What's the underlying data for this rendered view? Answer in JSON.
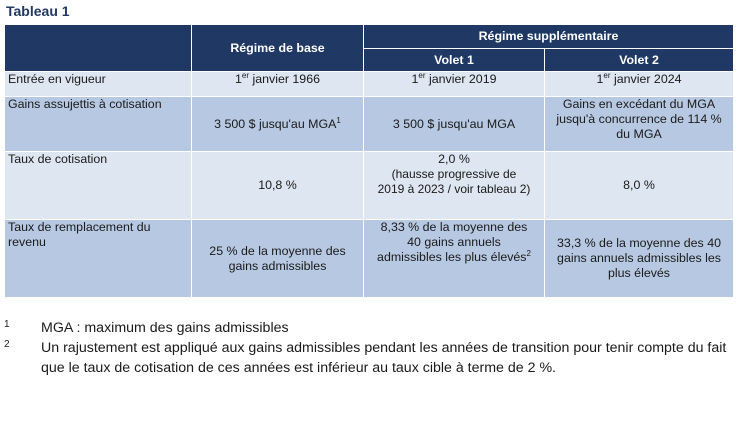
{
  "caption": "Tableau 1",
  "headers": {
    "base": "Régime de base",
    "supplementary": "Régime supplémentaire",
    "volet1": "Volet 1",
    "volet2": "Volet 2"
  },
  "rows": [
    {
      "label": "Entrée en vigueur",
      "base": {
        "pre": "1",
        "sup": "er",
        "post": " janvier 1966"
      },
      "volet1": {
        "pre": "1",
        "sup": "er",
        "post": " janvier 2019"
      },
      "volet2": {
        "pre": "1",
        "sup": "er",
        "post": " janvier 2024"
      }
    },
    {
      "label": "Gains assujettis à cotisation",
      "base": {
        "pre": "3 500 $ jusqu'au MGA",
        "sup": "1"
      },
      "volet1": "3 500 $ jusqu'au MGA",
      "volet2": "Gains en excédant du MGA jusqu'à concurrence de 114 % du MGA"
    },
    {
      "label": "Taux de cotisation",
      "base": "10,8 %",
      "volet1": {
        "line1": "2,0 %",
        "line2": "(hausse progressive de 2019 à 2023 / voir tableau 2)"
      },
      "volet2": "8,0 %"
    },
    {
      "label": "Taux de remplacement du revenu",
      "base": "25 % de la moyenne des gains admissibles",
      "volet1": {
        "pre": "8,33 % de la moyenne des 40 gains annuels admissibles les plus élevés",
        "sup": "2"
      },
      "volet2": "33,3 % de la moyenne des 40 gains annuels admissibles les plus élevés"
    }
  ],
  "footnotes": [
    {
      "num": "1",
      "text": "MGA : maximum des gains admissibles"
    },
    {
      "num": "2",
      "text": "Un rajustement est appliqué aux gains admissibles pendant les années de transition pour tenir compte du fait que le taux de cotisation de ces années est inférieur au taux cible à terme de 2 %."
    }
  ]
}
